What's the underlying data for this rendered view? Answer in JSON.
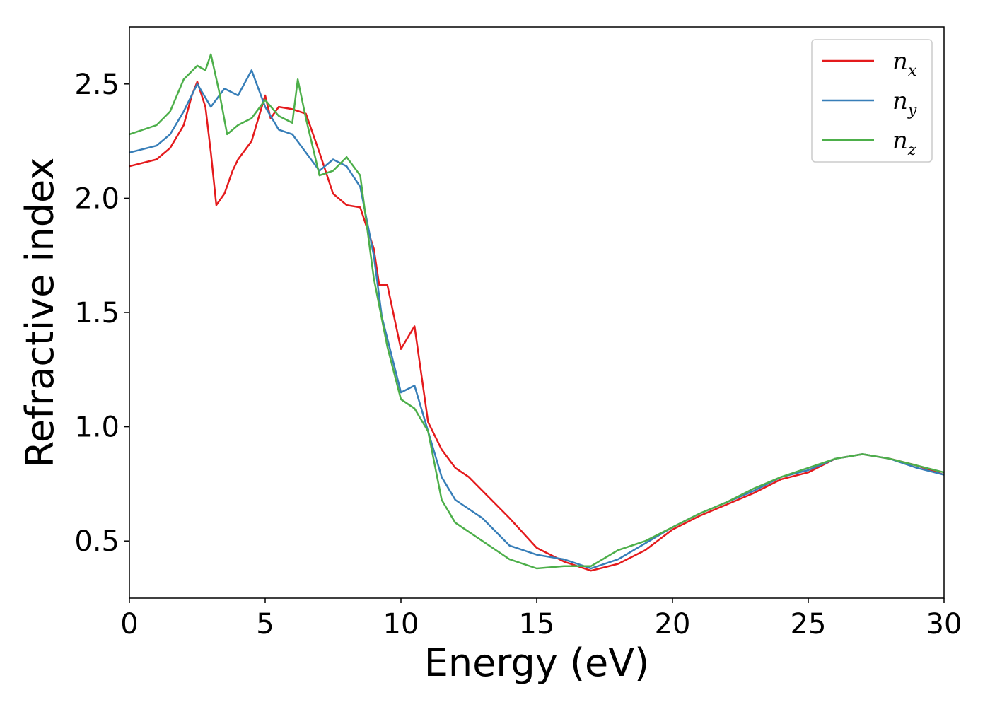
{
  "chart_data": {
    "type": "line",
    "xlabel": "Energy (eV)",
    "ylabel": "Refractive index",
    "xlim": [
      0,
      30
    ],
    "ylim": [
      0.25,
      2.75
    ],
    "x_ticks": [
      "0",
      "5",
      "10",
      "15",
      "20",
      "25",
      "30"
    ],
    "y_ticks": [
      "0.5",
      "1.0",
      "1.5",
      "2.0",
      "2.5"
    ],
    "grid": false,
    "legend_position": "top-right",
    "series": [
      {
        "name": "n_x",
        "label_base": "n",
        "label_sub": "x",
        "color": "#e41a1c",
        "x": [
          0,
          1,
          1.5,
          2,
          2.3,
          2.5,
          2.8,
          3,
          3.2,
          3.5,
          3.8,
          4,
          4.5,
          5,
          5.2,
          5.5,
          6,
          6.5,
          7,
          7.5,
          8,
          8.5,
          9,
          9.2,
          9.5,
          10,
          10.3,
          10.5,
          11,
          11.5,
          12,
          12.5,
          13,
          14,
          15,
          16,
          17,
          18,
          19,
          20,
          21,
          22,
          23,
          24,
          25,
          26,
          27,
          28,
          29,
          30
        ],
        "y": [
          2.14,
          2.17,
          2.22,
          2.32,
          2.45,
          2.51,
          2.4,
          2.2,
          1.97,
          2.02,
          2.12,
          2.17,
          2.25,
          2.45,
          2.35,
          2.4,
          2.39,
          2.37,
          2.2,
          2.02,
          1.97,
          1.96,
          1.78,
          1.62,
          1.62,
          1.34,
          1.4,
          1.44,
          1.02,
          0.9,
          0.82,
          0.78,
          0.72,
          0.6,
          0.47,
          0.41,
          0.37,
          0.4,
          0.46,
          0.55,
          0.61,
          0.66,
          0.71,
          0.77,
          0.8,
          0.86,
          0.88,
          0.86,
          0.83,
          0.79
        ]
      },
      {
        "name": "n_y",
        "label_base": "n",
        "label_sub": "y",
        "color": "#377eb8",
        "x": [
          0,
          1,
          1.5,
          2,
          2.5,
          3,
          3.5,
          4,
          4.5,
          5,
          5.5,
          6,
          6.5,
          7,
          7.5,
          8,
          8.5,
          9,
          9.3,
          10,
          10.5,
          11,
          11.5,
          12,
          13,
          14,
          15,
          16,
          17,
          18,
          19,
          20,
          21,
          22,
          23,
          24,
          25,
          26,
          27,
          28,
          29,
          30
        ],
        "y": [
          2.2,
          2.23,
          2.28,
          2.38,
          2.5,
          2.4,
          2.48,
          2.45,
          2.56,
          2.4,
          2.3,
          2.28,
          2.2,
          2.12,
          2.17,
          2.14,
          2.05,
          1.75,
          1.48,
          1.15,
          1.18,
          0.98,
          0.78,
          0.68,
          0.6,
          0.48,
          0.44,
          0.42,
          0.38,
          0.42,
          0.49,
          0.56,
          0.62,
          0.67,
          0.72,
          0.78,
          0.81,
          0.86,
          0.88,
          0.86,
          0.82,
          0.79
        ]
      },
      {
        "name": "n_z",
        "label_base": "n",
        "label_sub": "z",
        "color": "#4daf4a",
        "x": [
          0,
          1,
          1.5,
          2,
          2.5,
          2.8,
          3,
          3.3,
          3.6,
          4,
          4.5,
          5,
          5.5,
          6,
          6.2,
          6.5,
          7,
          7.5,
          8,
          8.5,
          9,
          9.5,
          10,
          10.5,
          11,
          11.5,
          12,
          13,
          14,
          15,
          16,
          17,
          18,
          19,
          20,
          21,
          22,
          23,
          24,
          25,
          26,
          27,
          28,
          29,
          30
        ],
        "y": [
          2.28,
          2.32,
          2.38,
          2.52,
          2.58,
          2.56,
          2.63,
          2.47,
          2.28,
          2.32,
          2.35,
          2.43,
          2.36,
          2.33,
          2.52,
          2.35,
          2.1,
          2.12,
          2.18,
          2.1,
          1.65,
          1.35,
          1.12,
          1.08,
          0.98,
          0.68,
          0.58,
          0.5,
          0.42,
          0.38,
          0.39,
          0.39,
          0.46,
          0.5,
          0.56,
          0.62,
          0.67,
          0.73,
          0.78,
          0.82,
          0.86,
          0.88,
          0.86,
          0.83,
          0.8
        ]
      }
    ]
  }
}
